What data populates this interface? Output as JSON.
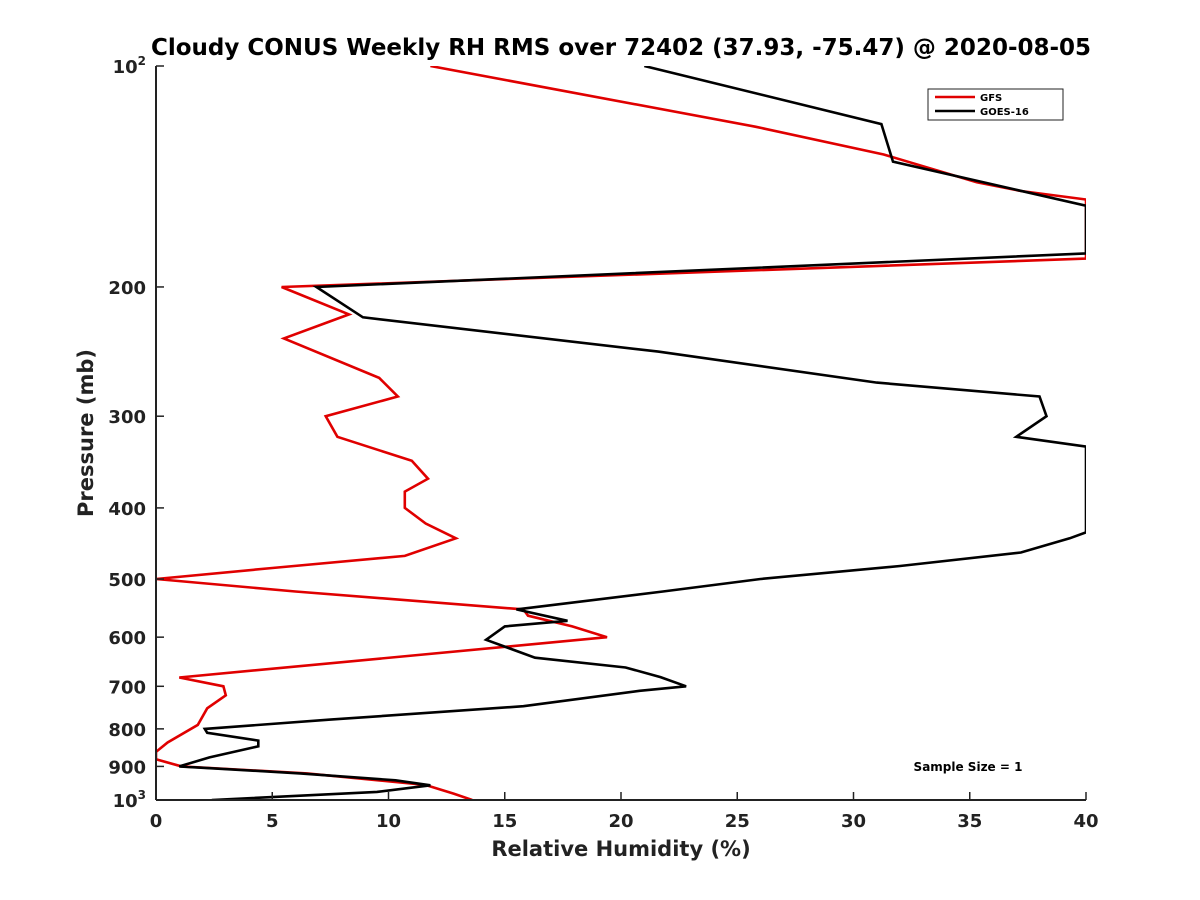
{
  "chart_data": {
    "type": "line",
    "title": "Cloudy CONUS Weekly RH RMS over 72402 (37.93, -75.47) @ 2020-08-05",
    "xlabel": "Relative Humidity (%)",
    "ylabel": "Pressure (mb)",
    "xlim": [
      0,
      40
    ],
    "ylim": [
      100,
      1000
    ],
    "y_scale": "log",
    "y_reversed": true,
    "x_ticks": [
      "0",
      "5",
      "10",
      "15",
      "20",
      "25",
      "30",
      "35",
      "40"
    ],
    "y_ticks": [
      {
        "value": 100,
        "base": "10",
        "sup": "2"
      },
      {
        "value": 200,
        "text": "200"
      },
      {
        "value": 300,
        "text": "300"
      },
      {
        "value": 400,
        "text": "400"
      },
      {
        "value": 500,
        "text": "500"
      },
      {
        "value": 600,
        "text": "600"
      },
      {
        "value": 700,
        "text": "700"
      },
      {
        "value": 800,
        "text": "800"
      },
      {
        "value": 900,
        "text": "900"
      },
      {
        "value": 1000,
        "base": "10",
        "sup": "3"
      }
    ],
    "legend_position": "top-right",
    "grid": false,
    "series": [
      {
        "name": "GFS",
        "color": "#e00000",
        "points": [
          [
            11.8,
            100
          ],
          [
            25.8,
            121
          ],
          [
            31.3,
            132
          ],
          [
            35.3,
            144
          ],
          [
            37.2,
            148
          ],
          [
            40,
            152
          ],
          [
            40,
            183
          ],
          [
            5.4,
            200
          ],
          [
            8.3,
            218
          ],
          [
            5.5,
            235
          ],
          [
            9.6,
            266
          ],
          [
            10.4,
            282
          ],
          [
            7.3,
            300
          ],
          [
            7.8,
            320
          ],
          [
            11.0,
            345
          ],
          [
            11.7,
            365
          ],
          [
            10.7,
            380
          ],
          [
            10.7,
            400
          ],
          [
            11.6,
            420
          ],
          [
            12.9,
            440
          ],
          [
            10.7,
            465
          ],
          [
            5.0,
            483
          ],
          [
            0.0,
            500
          ],
          [
            6.0,
            520
          ],
          [
            15.8,
            550
          ],
          [
            16.0,
            561
          ],
          [
            17.9,
            580
          ],
          [
            19.4,
            600
          ],
          [
            1.0,
            681
          ],
          [
            2.9,
            700
          ],
          [
            3.0,
            720
          ],
          [
            2.2,
            750
          ],
          [
            1.8,
            790
          ],
          [
            0.5,
            835
          ],
          [
            0.0,
            860
          ],
          [
            0.0,
            880
          ],
          [
            1.1,
            900
          ],
          [
            6.5,
            920
          ],
          [
            11.6,
            954
          ],
          [
            12.8,
            980
          ],
          [
            13.6,
            1000
          ]
        ]
      },
      {
        "name": "GOES-16",
        "color": "#000000",
        "points": [
          [
            21.0,
            100
          ],
          [
            31.2,
            120
          ],
          [
            31.7,
            135
          ],
          [
            40,
            155
          ],
          [
            40,
            180
          ],
          [
            6.9,
            200
          ],
          [
            8.9,
            220
          ],
          [
            21.6,
            245
          ],
          [
            31.0,
            270
          ],
          [
            38.0,
            282
          ],
          [
            38.3,
            300
          ],
          [
            37.0,
            320
          ],
          [
            40,
            330
          ],
          [
            40,
            432
          ],
          [
            39.3,
            440
          ],
          [
            37.2,
            460
          ],
          [
            32.0,
            480
          ],
          [
            26.0,
            500
          ],
          [
            21.8,
            520
          ],
          [
            15.5,
            550
          ],
          [
            17.7,
            570
          ],
          [
            15.0,
            580
          ],
          [
            14.2,
            605
          ],
          [
            16.3,
            640
          ],
          [
            20.2,
            660
          ],
          [
            21.7,
            680
          ],
          [
            22.8,
            700
          ],
          [
            20.8,
            710
          ],
          [
            15.8,
            745
          ],
          [
            7.5,
            777
          ],
          [
            2.1,
            800
          ],
          [
            2.2,
            810
          ],
          [
            4.4,
            830
          ],
          [
            4.4,
            845
          ],
          [
            2.3,
            875
          ],
          [
            1.0,
            900
          ],
          [
            6.2,
            920
          ],
          [
            10.3,
            940
          ],
          [
            11.8,
            955
          ],
          [
            9.5,
            975
          ],
          [
            2.4,
            1000
          ]
        ]
      }
    ],
    "annotation": "Sample Size = 1"
  }
}
